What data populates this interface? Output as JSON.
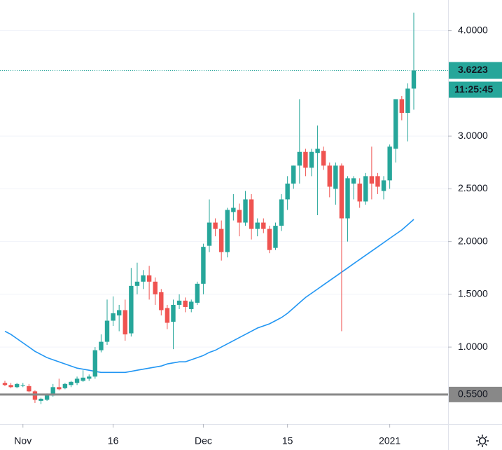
{
  "chart_data": {
    "type": "candlestick",
    "categories": [
      null,
      null,
      null,
      "Nov",
      null,
      null,
      null,
      null,
      null,
      null,
      null,
      null,
      null,
      null,
      null,
      null,
      null,
      null,
      "16",
      null,
      null,
      null,
      null,
      null,
      null,
      null,
      null,
      null,
      null,
      null,
      null,
      null,
      null,
      "Dec",
      null,
      null,
      null,
      null,
      null,
      null,
      null,
      null,
      null,
      null,
      null,
      null,
      null,
      "15",
      null,
      null,
      null,
      null,
      null,
      null,
      null,
      null,
      null,
      null,
      null,
      null,
      null,
      null,
      null,
      null,
      "2021",
      null,
      null,
      null,
      null
    ],
    "open": [
      0.66,
      0.64,
      0.62,
      0.64,
      0.63,
      0.58,
      0.49,
      0.5,
      0.54,
      0.62,
      0.61,
      0.64,
      0.66,
      0.68,
      0.7,
      0.72,
      0.97,
      1.05,
      1.25,
      1.3,
      1.35,
      1.13,
      1.58,
      1.62,
      1.68,
      1.62,
      1.52,
      1.37,
      1.24,
      1.4,
      1.44,
      1.36,
      1.42,
      1.6,
      1.96,
      2.18,
      2.12,
      1.9,
      2.28,
      2.3,
      2.18,
      2.4,
      2.12,
      2.18,
      2.12,
      1.94,
      2.15,
      2.4,
      2.55,
      2.72,
      2.85,
      2.7,
      2.84,
      2.86,
      2.72,
      2.5,
      2.72,
      2.22,
      2.55,
      2.55,
      2.38,
      2.62,
      2.62,
      2.48,
      2.58,
      2.88,
      3.35,
      3.22,
      3.45
    ],
    "high": [
      0.68,
      0.66,
      0.66,
      0.66,
      0.65,
      0.59,
      0.52,
      0.56,
      0.65,
      0.7,
      0.66,
      0.68,
      0.72,
      0.78,
      0.74,
      1.0,
      1.12,
      1.45,
      1.48,
      1.4,
      1.45,
      1.75,
      1.8,
      1.73,
      1.77,
      1.66,
      1.55,
      1.4,
      1.45,
      1.5,
      1.47,
      1.45,
      1.62,
      1.98,
      2.4,
      2.22,
      2.2,
      2.32,
      2.45,
      2.36,
      2.48,
      2.45,
      2.22,
      2.22,
      2.15,
      2.18,
      2.45,
      2.62,
      2.72,
      3.35,
      2.88,
      2.88,
      3.1,
      2.9,
      2.75,
      2.75,
      2.74,
      2.62,
      2.62,
      2.6,
      2.65,
      2.9,
      2.65,
      2.62,
      2.92,
      3.35,
      3.38,
      3.5,
      4.17
    ],
    "low": [
      0.63,
      0.61,
      0.61,
      0.62,
      0.57,
      0.47,
      0.46,
      0.49,
      0.53,
      0.59,
      0.6,
      0.62,
      0.64,
      0.67,
      0.68,
      0.7,
      0.95,
      1.02,
      1.2,
      1.15,
      1.06,
      1.1,
      1.5,
      1.55,
      1.45,
      1.4,
      1.3,
      1.17,
      0.98,
      1.36,
      1.33,
      1.33,
      1.4,
      1.5,
      1.9,
      2.05,
      1.82,
      1.85,
      2.2,
      2.05,
      2.15,
      2.02,
      2.05,
      2.08,
      1.89,
      1.92,
      2.1,
      2.3,
      2.5,
      2.55,
      2.62,
      2.62,
      2.25,
      2.68,
      2.42,
      2.35,
      1.15,
      2.0,
      2.4,
      2.32,
      2.35,
      2.4,
      2.45,
      2.4,
      2.5,
      2.75,
      3.15,
      2.95,
      3.25
    ],
    "close": [
      0.64,
      0.62,
      0.65,
      0.64,
      0.58,
      0.5,
      0.51,
      0.55,
      0.62,
      0.6,
      0.65,
      0.67,
      0.7,
      0.71,
      0.72,
      0.97,
      1.05,
      1.25,
      1.32,
      1.35,
      1.12,
      1.58,
      1.62,
      1.68,
      1.62,
      1.5,
      1.35,
      1.23,
      1.4,
      1.44,
      1.38,
      1.43,
      1.6,
      1.95,
      2.18,
      2.12,
      1.9,
      2.3,
      2.32,
      2.18,
      2.4,
      2.12,
      2.18,
      2.12,
      1.92,
      2.15,
      2.4,
      2.55,
      2.72,
      2.85,
      2.7,
      2.85,
      2.88,
      2.72,
      2.52,
      2.72,
      2.22,
      2.6,
      2.6,
      2.38,
      2.62,
      2.55,
      2.52,
      2.58,
      2.9,
      3.35,
      3.22,
      3.45,
      3.6223
    ],
    "up_color": "#26a69a",
    "down_color": "#ef5350",
    "moving_average": {
      "color": "#2196f3",
      "values": [
        1.15,
        1.12,
        1.08,
        1.04,
        1.0,
        0.96,
        0.93,
        0.9,
        0.88,
        0.86,
        0.84,
        0.82,
        0.8,
        0.79,
        0.78,
        0.77,
        0.76,
        0.76,
        0.76,
        0.76,
        0.76,
        0.77,
        0.78,
        0.79,
        0.8,
        0.81,
        0.82,
        0.84,
        0.85,
        0.86,
        0.86,
        0.88,
        0.9,
        0.92,
        0.95,
        0.97,
        1.0,
        1.03,
        1.06,
        1.09,
        1.12,
        1.15,
        1.18,
        1.2,
        1.22,
        1.25,
        1.28,
        1.32,
        1.37,
        1.42,
        1.47,
        1.51,
        1.55,
        1.59,
        1.63,
        1.67,
        1.71,
        1.75,
        1.79,
        1.83,
        1.87,
        1.91,
        1.95,
        1.99,
        2.03,
        2.07,
        2.11,
        2.16,
        2.21
      ]
    },
    "ylim": [
      0.27,
      4.29
    ],
    "yticks": [
      {
        "value": 1,
        "label": "1.0000"
      },
      {
        "value": 1.5,
        "label": "1.5000"
      },
      {
        "value": 2,
        "label": "2.0000"
      },
      {
        "value": 2.5,
        "label": "2.5000"
      },
      {
        "value": 3,
        "label": "3.0000"
      },
      {
        "value": 4,
        "label": "4.0000"
      }
    ],
    "grid": true,
    "horizontal_line": {
      "value": 0.55,
      "label": "0.5500",
      "color": "#888888"
    },
    "price_line": {
      "value": 3.6223,
      "label": "3.6223",
      "color": "#26a69a"
    },
    "countdown": "11:25:45"
  }
}
